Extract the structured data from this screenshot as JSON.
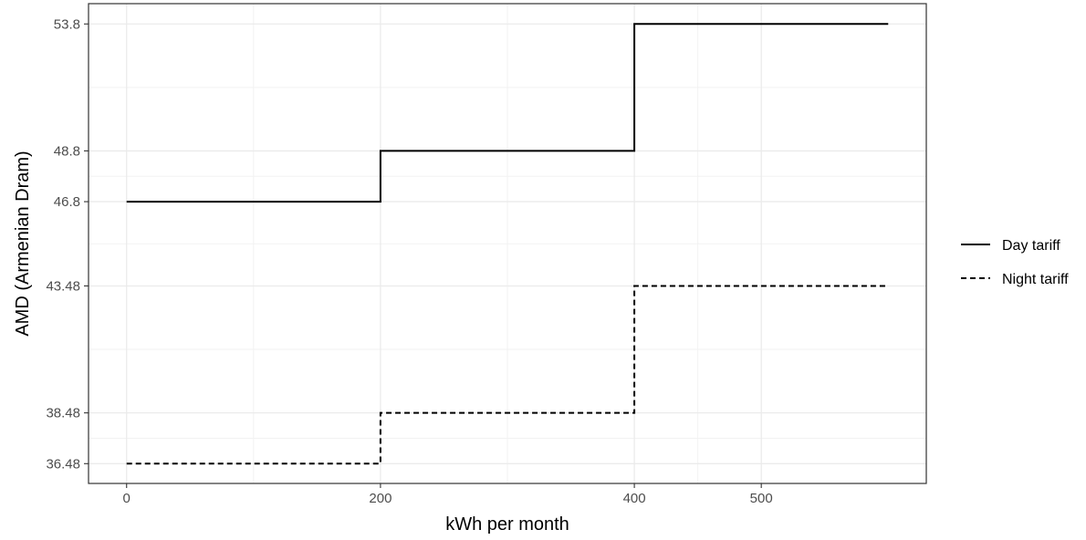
{
  "chart_data": {
    "type": "line",
    "subtype": "step",
    "title": "",
    "xlabel": "kWh per month",
    "ylabel": "AMD (Armenian Dram)",
    "x_ticks": [
      0,
      200,
      400,
      500
    ],
    "y_ticks": [
      36.48,
      38.48,
      43.48,
      46.8,
      48.8,
      53.8
    ],
    "y_tick_labels": [
      "36.48",
      "38.48",
      "43.48",
      "46.8",
      "48.8",
      "53.8"
    ],
    "xlim": [
      -30,
      630
    ],
    "ylim": [
      35.7,
      54.6
    ],
    "grid": true,
    "legend_position": "right",
    "series": [
      {
        "name": "Day tariff",
        "line_style": "solid",
        "color": "#000000",
        "x": [
          0,
          200,
          400,
          600
        ],
        "y": [
          46.8,
          48.8,
          53.8,
          53.8
        ]
      },
      {
        "name": "Night tariff",
        "line_style": "dashed",
        "color": "#000000",
        "x": [
          0,
          200,
          400,
          600
        ],
        "y": [
          36.48,
          38.48,
          43.48,
          43.48
        ]
      }
    ]
  }
}
